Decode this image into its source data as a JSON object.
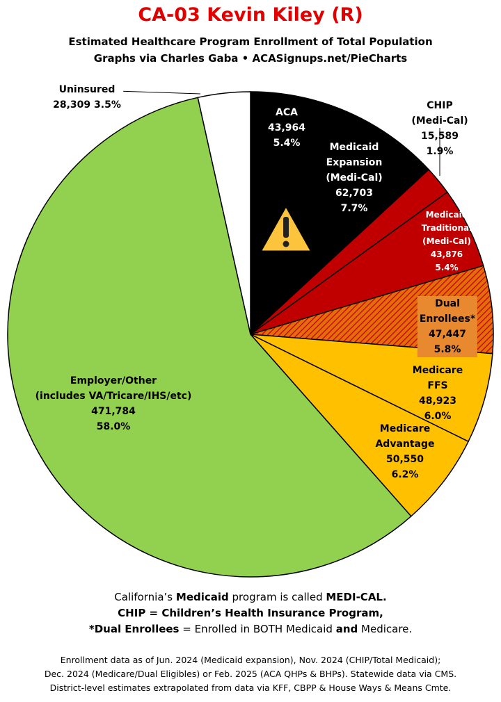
{
  "chart_data": {
    "type": "pie",
    "title": "CA-03 Kevin Kiley (R)",
    "subtitle": [
      "Estimated Healthcare Program Enrollment of Total Population",
      "Graphs via Charles Gaba  •  ACASignups.net/PieCharts"
    ],
    "categories": [
      "ACA",
      "Medicaid\nExpansion\n(Medi-Cal)",
      "CHIP (Medi-Cal)",
      "Medicaid\nTraditional\n(Medi-Cal)",
      "Dual Enrollees*",
      "Medicare FFS",
      "Medicare\nAdvantage",
      "Employer/Other\n(includes VA/Tricare/IHS/etc)",
      "Uninsured"
    ],
    "values": [
      43964,
      62703,
      15589,
      43876,
      47447,
      48923,
      50550,
      471784,
      28309
    ],
    "value_labels": [
      "43,964",
      "62,703",
      "15,589",
      "43,876",
      "47,447",
      "48,923",
      "50,550",
      "471,784",
      "28,309"
    ],
    "shares": [
      5.4,
      7.7,
      1.9,
      5.4,
      5.8,
      6.0,
      6.2,
      58.0,
      3.5
    ],
    "share_labels": [
      "5.4%",
      "7.7%",
      "1.9%",
      "5.4%",
      "5.8%",
      "6.0%",
      "6.2%",
      "58.0%",
      "3.5%"
    ],
    "colors": [
      "#000000",
      "#000000",
      "#c00000",
      "#c00000",
      "hatch",
      "#ffc000",
      "#ffc000",
      "#92d050",
      "#ffffff"
    ],
    "notes": [
      [
        {
          "text": "California’s "
        },
        {
          "text": "Medicaid",
          "bold": true
        },
        {
          "text": " program is called "
        },
        {
          "text": "MEDI-CAL.",
          "bold": true
        }
      ],
      [
        {
          "text": "CHIP = Children’s Health Insurance Program,",
          "bold": true
        }
      ],
      [
        {
          "text": "*Dual Enrollees",
          "bold": true
        },
        {
          "text": " = Enrolled in BOTH Medicaid "
        },
        {
          "text": "and",
          "bold": true
        },
        {
          "text": " Medicare."
        }
      ]
    ],
    "sources": [
      "Enrollment data as of Jun. 2024 (Medicaid expansion), Nov. 2024 (CHIP/Total Medicaid);",
      "Dec. 2024 (Medicare/Dual Eligibles) or Feb. 2025 (ACA QHPs & BHPs). Statewide data via CMS.",
      "District-level estimates extrapolated from data via KFF, CBPP & House Ways & Means Cmte."
    ]
  }
}
